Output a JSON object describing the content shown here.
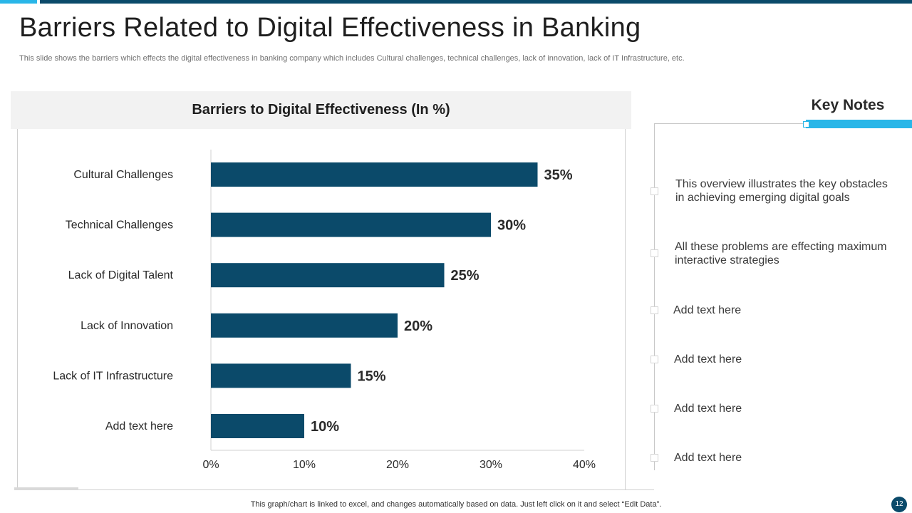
{
  "slide": {
    "title": "Barriers Related to Digital Effectiveness in Banking",
    "subtitle": "This slide shows the barriers which effects the digital effectiveness in banking company which includes Cultural challenges, technical challenges, lack of innovation, lack of IT Infrastructure, etc.",
    "footer": "This graph/chart is linked to excel,  and changes automatically based on data. Just left click on it and select “Edit Data”.",
    "page_number": "12"
  },
  "colors": {
    "bar": "#0b4a6a",
    "accent": "#29b6e8",
    "dark_band": "#0b4a6a"
  },
  "chart_data": {
    "type": "bar",
    "orientation": "horizontal",
    "title": "Barriers to Digital Effectiveness (In %)",
    "categories": [
      "Cultural Challenges",
      "Technical Challenges",
      "Lack of Digital Talent",
      "Lack of Innovation",
      "Lack of IT Infrastructure",
      "Add text here"
    ],
    "values": [
      35,
      30,
      25,
      20,
      15,
      10
    ],
    "data_labels": [
      "35%",
      "30%",
      "25%",
      "20%",
      "15%",
      "10%"
    ],
    "xlim": [
      0,
      40
    ],
    "ticks": [
      0,
      10,
      20,
      30,
      40
    ],
    "tick_labels": [
      "0%",
      "10%",
      "20%",
      "30%",
      "40%"
    ],
    "xlabel": "",
    "ylabel": "",
    "grid": false
  },
  "key_notes": {
    "title": "Key Notes",
    "items": [
      {
        "line1": "This overview illustrates the key obstacles",
        "line2": "in achieving emerging digital goals"
      },
      {
        "line1": "All these problems are effecting maximum",
        "line2": "interactive strategies"
      },
      {
        "line1": "Add text here",
        "line2": ""
      },
      {
        "line1": "Add text here",
        "line2": ""
      },
      {
        "line1": "Add text here",
        "line2": ""
      },
      {
        "line1": "Add text here",
        "line2": ""
      }
    ]
  }
}
